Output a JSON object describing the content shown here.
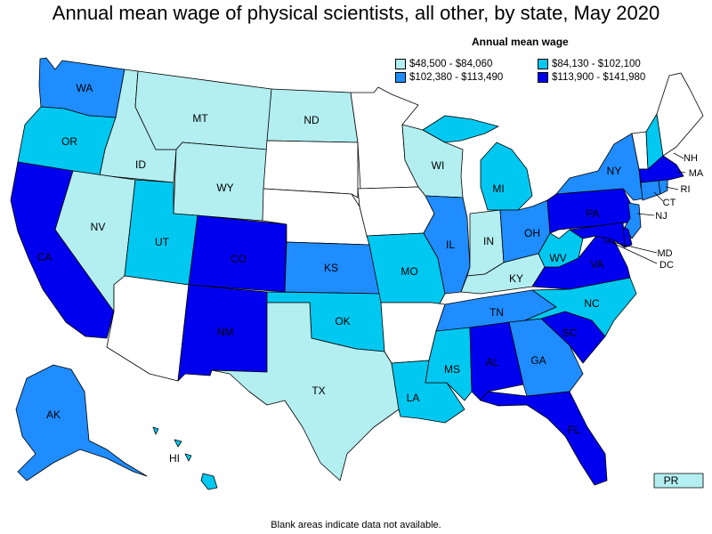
{
  "title": "Annual mean wage of physical scientists, all other, by state, May 2020",
  "legend": {
    "title": "Annual mean wage",
    "items": [
      {
        "label": "$48,500 - $84,060",
        "color": "#b3eef0"
      },
      {
        "label": "$84,130 - $102,100",
        "color": "#00c8f0"
      },
      {
        "label": "$102,380 - $113,490",
        "color": "#1f8cff"
      },
      {
        "label": "$113,900 - $141,980",
        "color": "#0000ee"
      }
    ]
  },
  "no_data_color": "#ffffff",
  "footnote": "Blank areas indicate data not available.",
  "states": [
    {
      "id": "WA",
      "cls": 2
    },
    {
      "id": "OR",
      "cls": 1
    },
    {
      "id": "CA",
      "cls": 3
    },
    {
      "id": "ID",
      "cls": 0
    },
    {
      "id": "NV",
      "cls": 0
    },
    {
      "id": "MT",
      "cls": 0
    },
    {
      "id": "WY",
      "cls": 0
    },
    {
      "id": "UT",
      "cls": 1
    },
    {
      "id": "AZ",
      "cls": null
    },
    {
      "id": "CO",
      "cls": 3
    },
    {
      "id": "NM",
      "cls": 3
    },
    {
      "id": "ND",
      "cls": 0
    },
    {
      "id": "SD",
      "cls": null
    },
    {
      "id": "NE",
      "cls": null
    },
    {
      "id": "KS",
      "cls": 2
    },
    {
      "id": "OK",
      "cls": 1
    },
    {
      "id": "TX",
      "cls": 0
    },
    {
      "id": "MN",
      "cls": null
    },
    {
      "id": "IA",
      "cls": null
    },
    {
      "id": "MO",
      "cls": 1
    },
    {
      "id": "AR",
      "cls": null
    },
    {
      "id": "LA",
      "cls": 1
    },
    {
      "id": "WI",
      "cls": 0
    },
    {
      "id": "IL",
      "cls": 2
    },
    {
      "id": "MI",
      "cls": 1
    },
    {
      "id": "IN",
      "cls": 0
    },
    {
      "id": "OH",
      "cls": 2
    },
    {
      "id": "KY",
      "cls": 0
    },
    {
      "id": "TN",
      "cls": 2
    },
    {
      "id": "MS",
      "cls": 1
    },
    {
      "id": "AL",
      "cls": 3
    },
    {
      "id": "GA",
      "cls": 2
    },
    {
      "id": "FL",
      "cls": 3
    },
    {
      "id": "SC",
      "cls": 3
    },
    {
      "id": "NC",
      "cls": 1
    },
    {
      "id": "VA",
      "cls": 3
    },
    {
      "id": "WV",
      "cls": 1
    },
    {
      "id": "PA",
      "cls": 3
    },
    {
      "id": "NY",
      "cls": 2
    },
    {
      "id": "NJ",
      "cls": 2
    },
    {
      "id": "DE",
      "cls": 3
    },
    {
      "id": "MD",
      "cls": 3
    },
    {
      "id": "DC",
      "cls": 3
    },
    {
      "id": "VT",
      "cls": null
    },
    {
      "id": "NH",
      "cls": 1
    },
    {
      "id": "ME",
      "cls": null
    },
    {
      "id": "MA",
      "cls": 3
    },
    {
      "id": "CT",
      "cls": 2
    },
    {
      "id": "RI",
      "cls": 2
    },
    {
      "id": "AK",
      "cls": 2
    },
    {
      "id": "HI",
      "cls": 1
    },
    {
      "id": "PR",
      "cls": 0
    }
  ]
}
